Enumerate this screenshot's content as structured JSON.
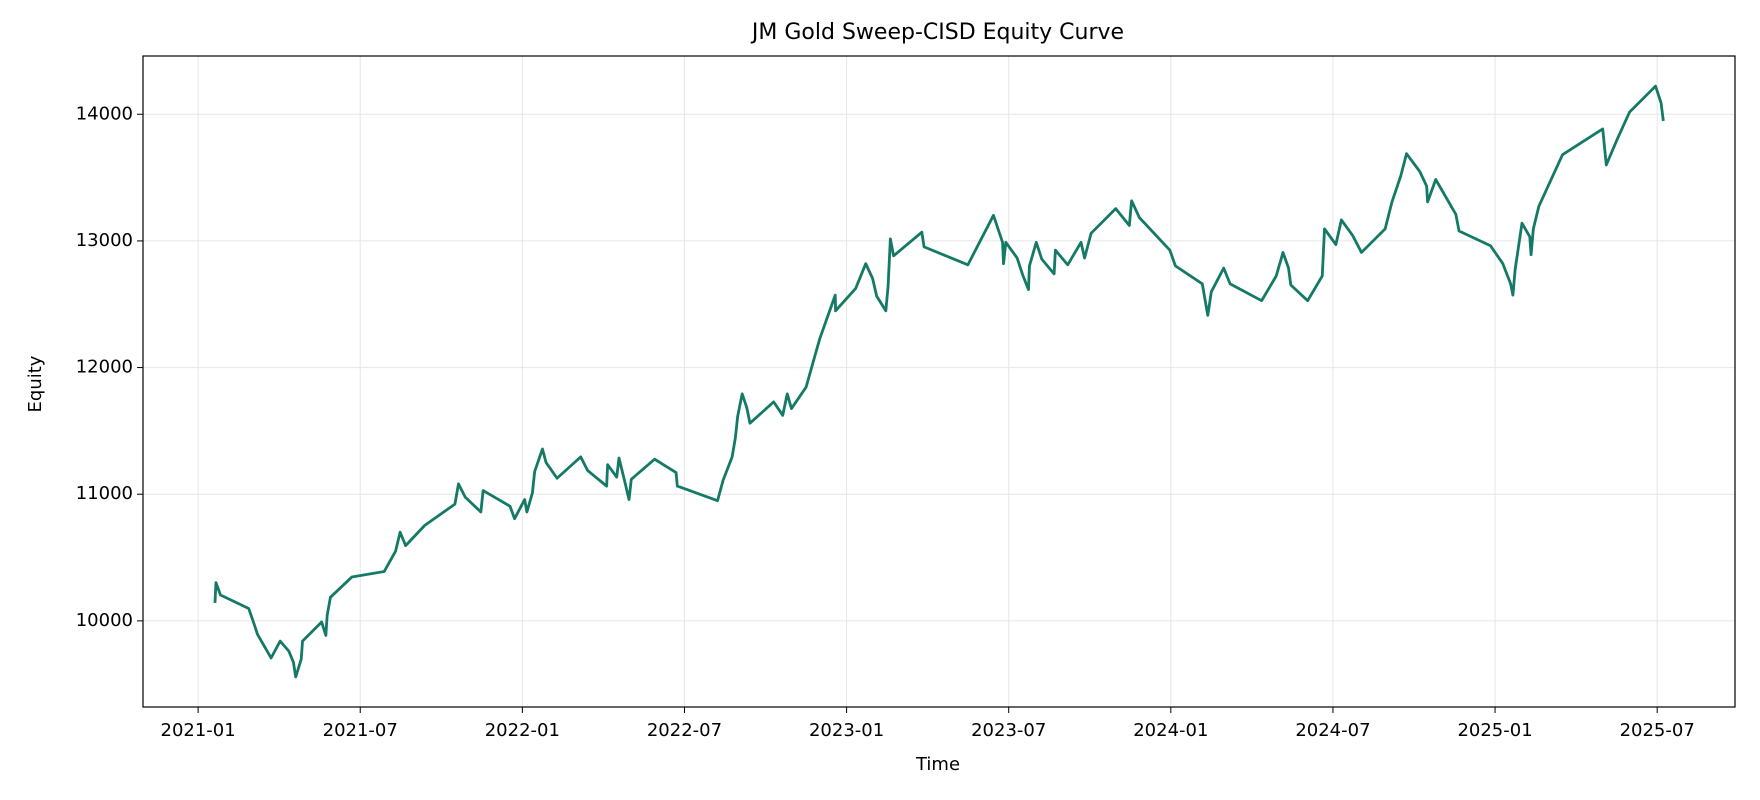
{
  "chart_data": {
    "type": "line",
    "title": "JM Gold Sweep-CISD Equity Curve",
    "x_label": "Time",
    "y_label": "Equity",
    "color": "#147a66",
    "grid": true,
    "xlim": [
      2020.83,
      2025.74
    ],
    "ylim": [
      9320,
      14460
    ],
    "xticks": [
      {
        "value": 2021.0,
        "label": "2021-01"
      },
      {
        "value": 2021.5,
        "label": "2021-07"
      },
      {
        "value": 2022.0,
        "label": "2022-01"
      },
      {
        "value": 2022.5,
        "label": "2022-07"
      },
      {
        "value": 2023.0,
        "label": "2023-01"
      },
      {
        "value": 2023.5,
        "label": "2023-07"
      },
      {
        "value": 2024.0,
        "label": "2024-01"
      },
      {
        "value": 2024.5,
        "label": "2024-07"
      },
      {
        "value": 2025.0,
        "label": "2025-01"
      },
      {
        "value": 2025.5,
        "label": "2025-07"
      }
    ],
    "yticks": [
      10000,
      11000,
      12000,
      13000,
      14000
    ],
    "x": [
      2021.052,
      2021.055,
      2021.069,
      2021.156,
      2021.173,
      2021.183,
      2021.225,
      2021.253,
      2021.28,
      2021.294,
      2021.301,
      2021.318,
      2021.322,
      2021.381,
      2021.394,
      2021.398,
      2021.408,
      2021.474,
      2021.574,
      2021.609,
      2021.623,
      2021.64,
      2021.699,
      2021.792,
      2021.803,
      2021.824,
      2021.872,
      2021.879,
      2021.962,
      2021.976,
      2022.007,
      2022.014,
      2022.031,
      2022.038,
      2022.062,
      2022.073,
      2022.107,
      2022.18,
      2022.201,
      2022.26,
      2022.263,
      2022.291,
      2022.298,
      2022.315,
      2022.329,
      2022.336,
      2022.408,
      2022.474,
      2022.478,
      2022.602,
      2022.619,
      2022.647,
      2022.657,
      2022.664,
      2022.678,
      2022.692,
      2022.702,
      2022.775,
      2022.803,
      2022.817,
      2022.83,
      2022.875,
      2022.917,
      2022.965,
      2022.966,
      2023.028,
      2023.059,
      2023.08,
      2023.093,
      2023.121,
      2023.128,
      2023.135,
      2023.145,
      2023.232,
      2023.239,
      2023.374,
      2023.453,
      2023.481,
      2023.484,
      2023.491,
      2023.526,
      2023.543,
      2023.561,
      2023.564,
      2023.585,
      2023.602,
      2023.64,
      2023.644,
      2023.682,
      2023.723,
      2023.734,
      2023.754,
      2023.83,
      2023.872,
      2023.879,
      2023.903,
      2023.997,
      2024.014,
      2024.097,
      2024.114,
      2024.125,
      2024.163,
      2024.183,
      2024.28,
      2024.325,
      2024.346,
      2024.363,
      2024.37,
      2024.422,
      2024.467,
      2024.474,
      2024.509,
      2024.526,
      2024.561,
      2024.588,
      2024.661,
      2024.682,
      2024.709,
      2024.727,
      2024.768,
      2024.789,
      2024.792,
      2024.817,
      2024.879,
      2024.889,
      2024.986,
      2025.024,
      2025.048,
      2025.055,
      2025.062,
      2025.083,
      2025.107,
      2025.111,
      2025.118,
      2025.135,
      2025.208,
      2025.332,
      2025.343,
      2025.377,
      2025.415,
      2025.495,
      2025.512,
      2025.519
    ],
    "values": [
      10142,
      10302,
      10204,
      10098,
      9973,
      9894,
      9707,
      9840,
      9760,
      9672,
      9557,
      9698,
      9840,
      9991,
      9885,
      10044,
      10186,
      10346,
      10390,
      10550,
      10700,
      10594,
      10754,
      10922,
      11082,
      10976,
      10860,
      11029,
      10905,
      10807,
      10958,
      10860,
      11011,
      11180,
      11357,
      11251,
      11126,
      11295,
      11188,
      11064,
      11233,
      11135,
      11286,
      11109,
      10958,
      11118,
      11277,
      11171,
      11064,
      10949,
      11109,
      11295,
      11446,
      11614,
      11792,
      11685,
      11561,
      11729,
      11623,
      11792,
      11676,
      11845,
      12226,
      12572,
      12448,
      12625,
      12820,
      12705,
      12563,
      12448,
      12643,
      13016,
      12882,
      13069,
      12953,
      12811,
      13202,
      12989,
      12820,
      12989,
      12865,
      12732,
      12616,
      12803,
      12989,
      12856,
      12740,
      12927,
      12811,
      12989,
      12865,
      13060,
      13255,
      13122,
      13317,
      13184,
      12927,
      12803,
      12661,
      12412,
      12599,
      12785,
      12661,
      12528,
      12723,
      12909,
      12785,
      12652,
      12528,
      12723,
      13095,
      12971,
      13166,
      13042,
      12909,
      13095,
      13308,
      13512,
      13689,
      13547,
      13432,
      13308,
      13485,
      13210,
      13078,
      12962,
      12820,
      12661,
      12572,
      12776,
      13140,
      13033,
      12891,
      13095,
      13273,
      13681,
      13884,
      13600,
      13804,
      14018,
      14222,
      14089,
      13947
    ]
  }
}
